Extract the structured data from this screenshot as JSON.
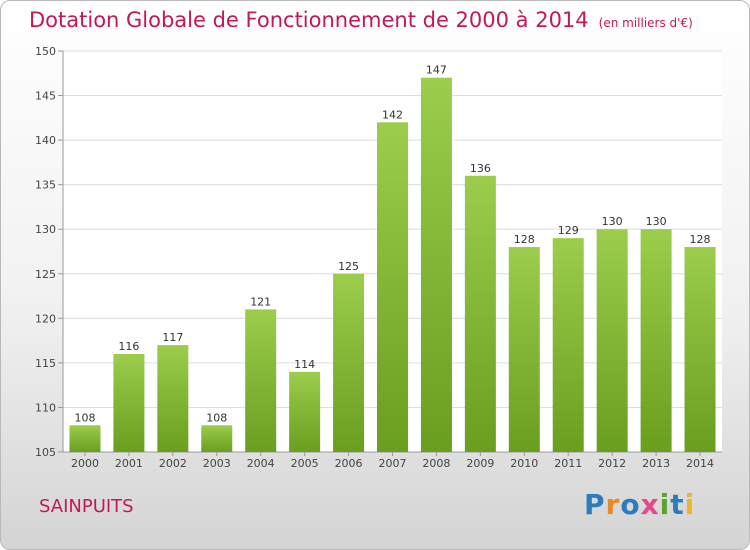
{
  "header": {
    "title": "Dotation Globale de Fonctionnement de 2000 à 2014",
    "subtitle": "(en milliers d'€)"
  },
  "footer": {
    "commune": "SAINPUITS",
    "logo_text": "Proxiti"
  },
  "colors": {
    "title": "#c2185b",
    "bar_top": "#9ccd4c",
    "bar_bottom": "#6a9e1f"
  },
  "chart_data": {
    "type": "bar",
    "categories": [
      "2000",
      "2001",
      "2002",
      "2003",
      "2004",
      "2005",
      "2006",
      "2007",
      "2008",
      "2009",
      "2010",
      "2011",
      "2012",
      "2013",
      "2014"
    ],
    "values": [
      108,
      116,
      117,
      108,
      121,
      114,
      125,
      142,
      147,
      136,
      128,
      129,
      130,
      130,
      128
    ],
    "ylim": [
      105,
      150
    ],
    "yticks": [
      105,
      110,
      115,
      120,
      125,
      130,
      135,
      140,
      145,
      150
    ],
    "grid": true
  }
}
